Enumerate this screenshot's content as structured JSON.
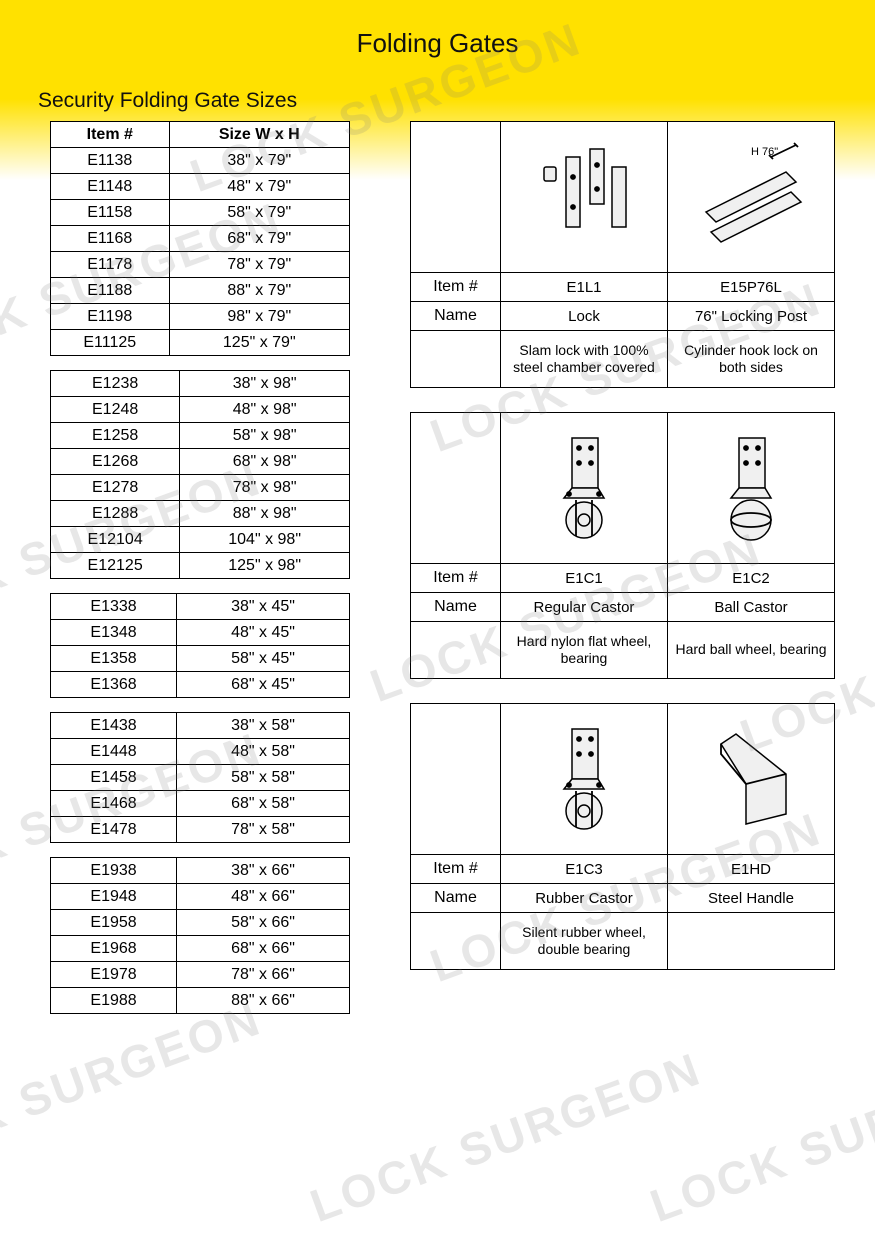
{
  "page": {
    "title": "Folding Gates",
    "subtitle": "Security Folding Gate Sizes",
    "watermark_text": "LOCK SURGEON",
    "header_color": "#ffe100",
    "border_color": "#000000",
    "text_color": "#111111",
    "bg_color": "#ffffff"
  },
  "size_table": {
    "headers": {
      "item": "Item #",
      "size": "Size W x H"
    },
    "groups": [
      {
        "rows": [
          {
            "item": "E1138",
            "size": "38\" x 79\""
          },
          {
            "item": "E1148",
            "size": "48\" x 79\""
          },
          {
            "item": "E1158",
            "size": "58\" x 79\""
          },
          {
            "item": "E1168",
            "size": "68\" x 79\""
          },
          {
            "item": "E1178",
            "size": "78\" x 79\""
          },
          {
            "item": "E1188",
            "size": "88\" x 79\""
          },
          {
            "item": "E1198",
            "size": "98\" x 79\""
          },
          {
            "item": "E11125",
            "size": "125\" x 79\""
          }
        ]
      },
      {
        "rows": [
          {
            "item": "E1238",
            "size": "38\" x 98\""
          },
          {
            "item": "E1248",
            "size": "48\" x 98\""
          },
          {
            "item": "E1258",
            "size": "58\" x 98\""
          },
          {
            "item": "E1268",
            "size": "68\" x 98\""
          },
          {
            "item": "E1278",
            "size": "78\" x 98\""
          },
          {
            "item": "E1288",
            "size": "88\" x 98\""
          },
          {
            "item": "E12104",
            "size": "104\" x 98\""
          },
          {
            "item": "E12125",
            "size": "125\" x 98\""
          }
        ]
      },
      {
        "rows": [
          {
            "item": "E1338",
            "size": "38\" x 45\""
          },
          {
            "item": "E1348",
            "size": "48\" x 45\""
          },
          {
            "item": "E1358",
            "size": "58\" x 45\""
          },
          {
            "item": "E1368",
            "size": "68\" x 45\""
          }
        ]
      },
      {
        "rows": [
          {
            "item": "E1438",
            "size": "38\" x 58\""
          },
          {
            "item": "E1448",
            "size": "48\" x 58\""
          },
          {
            "item": "E1458",
            "size": "58\" x 58\""
          },
          {
            "item": "E1468",
            "size": "68\" x 58\""
          },
          {
            "item": "E1478",
            "size": "78\" x 58\""
          }
        ]
      },
      {
        "rows": [
          {
            "item": "E1938",
            "size": "38\" x 66\""
          },
          {
            "item": "E1948",
            "size": "48\" x 66\""
          },
          {
            "item": "E1958",
            "size": "58\" x 66\""
          },
          {
            "item": "E1968",
            "size": "68\" x 66\""
          },
          {
            "item": "E1978",
            "size": "78\" x 66\""
          },
          {
            "item": "E1988",
            "size": "88\" x 66\""
          }
        ]
      }
    ]
  },
  "parts": {
    "row_labels": {
      "item": "Item #",
      "name": "Name"
    },
    "blocks": [
      {
        "items": [
          {
            "item": "E1L1",
            "name": "Lock",
            "desc": "Slam lock with 100% steel chamber covered",
            "icon": "lock-parts"
          },
          {
            "item": "E15P76L",
            "name": "76\" Locking Post",
            "desc": "Cylinder hook lock on both sides",
            "icon": "locking-post",
            "dim_label": "H 76\""
          }
        ]
      },
      {
        "items": [
          {
            "item": "E1C1",
            "name": "Regular Castor",
            "desc": "Hard nylon flat wheel, bearing",
            "icon": "castor-flat"
          },
          {
            "item": "E1C2",
            "name": "Ball Castor",
            "desc": "Hard ball wheel, bearing",
            "icon": "castor-ball"
          }
        ]
      },
      {
        "items": [
          {
            "item": "E1C3",
            "name": "Rubber Castor",
            "desc": "Silent rubber wheel, double bearing",
            "icon": "castor-rubber"
          },
          {
            "item": "E1HD",
            "name": "Steel Handle",
            "desc": "",
            "icon": "steel-handle"
          }
        ]
      }
    ]
  }
}
